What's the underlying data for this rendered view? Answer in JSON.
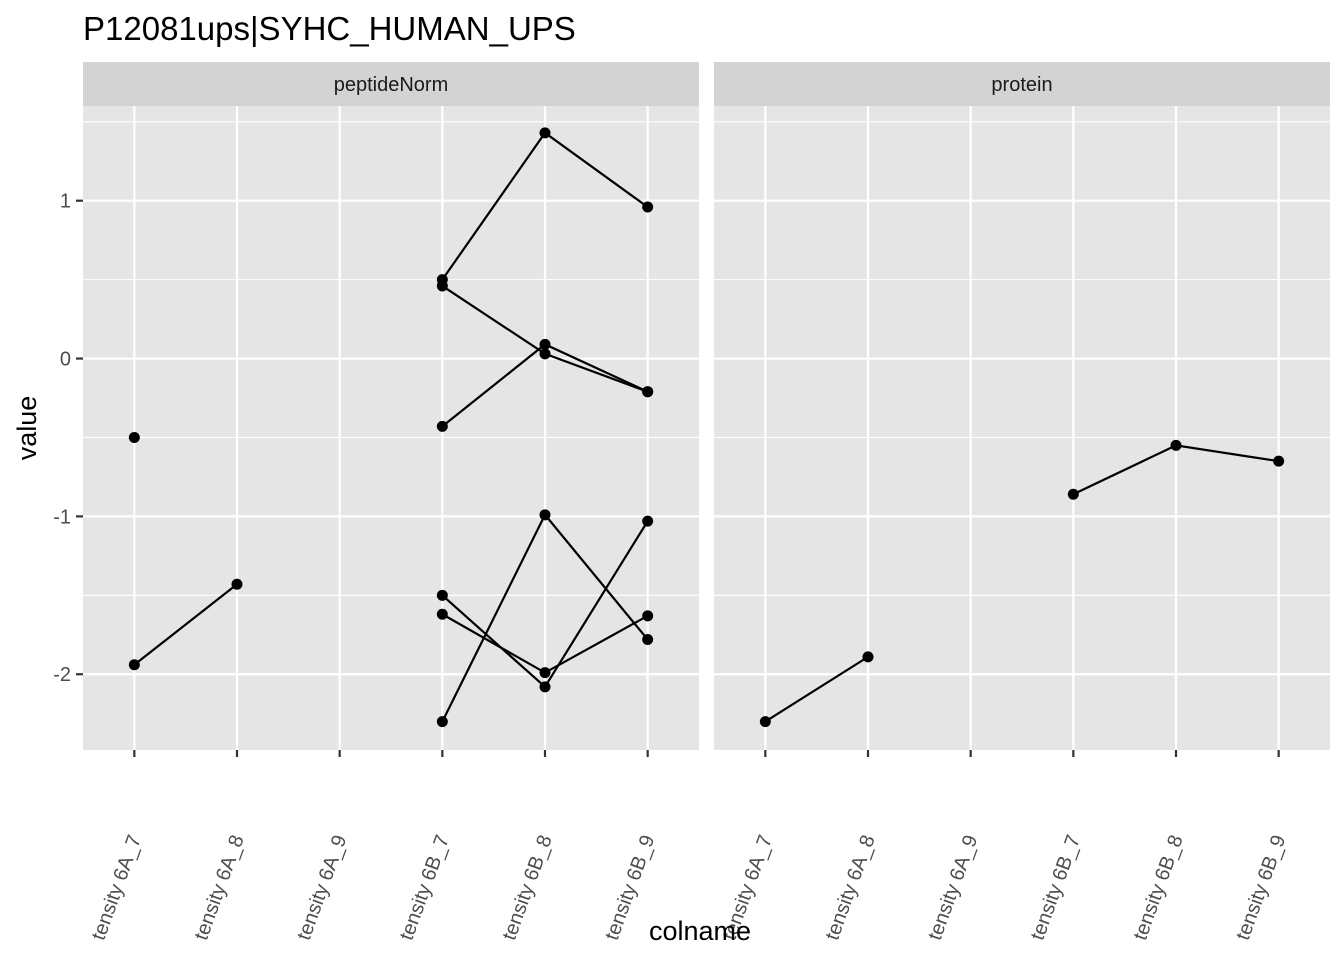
{
  "chart_data": {
    "type": "line",
    "title": "P12081ups|SYHC_HUMAN_UPS",
    "xlabel": "colname",
    "ylabel": "value",
    "categories": [
      "tensity 6A_7",
      "tensity 6A_8",
      "tensity 6A_9",
      "tensity 6B_7",
      "tensity 6B_8",
      "tensity 6B_9"
    ],
    "ylim": [
      -2.48,
      1.6
    ],
    "y_ticks": [
      -2,
      -1,
      0,
      1
    ],
    "y_tick_labels": [
      "-2",
      "-1",
      "0",
      "1"
    ],
    "grid": true,
    "panels": [
      {
        "name": "peptideNorm",
        "series": [
          {
            "points": [
              {
                "x": "tensity 6A_7",
                "y": -0.5
              }
            ]
          },
          {
            "points": [
              {
                "x": "tensity 6A_7",
                "y": -1.94
              },
              {
                "x": "tensity 6A_8",
                "y": -1.43
              }
            ]
          },
          {
            "points": [
              {
                "x": "tensity 6B_7",
                "y": 0.5
              },
              {
                "x": "tensity 6B_8",
                "y": 1.43
              },
              {
                "x": "tensity 6B_9",
                "y": 0.96
              }
            ]
          },
          {
            "points": [
              {
                "x": "tensity 6B_7",
                "y": 0.46
              },
              {
                "x": "tensity 6B_8",
                "y": 0.03
              },
              {
                "x": "tensity 6B_9",
                "y": -0.21
              }
            ]
          },
          {
            "points": [
              {
                "x": "tensity 6B_7",
                "y": -0.43
              },
              {
                "x": "tensity 6B_8",
                "y": 0.09
              },
              {
                "x": "tensity 6B_9",
                "y": -0.21
              }
            ]
          },
          {
            "points": [
              {
                "x": "tensity 6B_7",
                "y": -1.5
              },
              {
                "x": "tensity 6B_8",
                "y": -2.08
              },
              {
                "x": "tensity 6B_9",
                "y": -1.03
              }
            ]
          },
          {
            "points": [
              {
                "x": "tensity 6B_7",
                "y": -1.62
              },
              {
                "x": "tensity 6B_8",
                "y": -1.99
              },
              {
                "x": "tensity 6B_9",
                "y": -1.63
              }
            ]
          },
          {
            "points": [
              {
                "x": "tensity 6B_7",
                "y": -2.3
              },
              {
                "x": "tensity 6B_8",
                "y": -0.99
              },
              {
                "x": "tensity 6B_9",
                "y": -1.78
              }
            ]
          }
        ]
      },
      {
        "name": "protein",
        "series": [
          {
            "points": [
              {
                "x": "tensity 6A_7",
                "y": -2.3
              },
              {
                "x": "tensity 6A_8",
                "y": -1.89
              }
            ]
          },
          {
            "points": [
              {
                "x": "tensity 6B_7",
                "y": -0.86
              },
              {
                "x": "tensity 6B_8",
                "y": -0.55
              },
              {
                "x": "tensity 6B_9",
                "y": -0.65
              }
            ]
          }
        ]
      }
    ],
    "colors": {
      "panel_bg": "#e5e5e5",
      "strip_bg": "#d3d3d3",
      "grid": "#ffffff",
      "ink": "#000000",
      "tick_text": "#4d4d4d",
      "strip_text": "#1a1a1a"
    }
  }
}
